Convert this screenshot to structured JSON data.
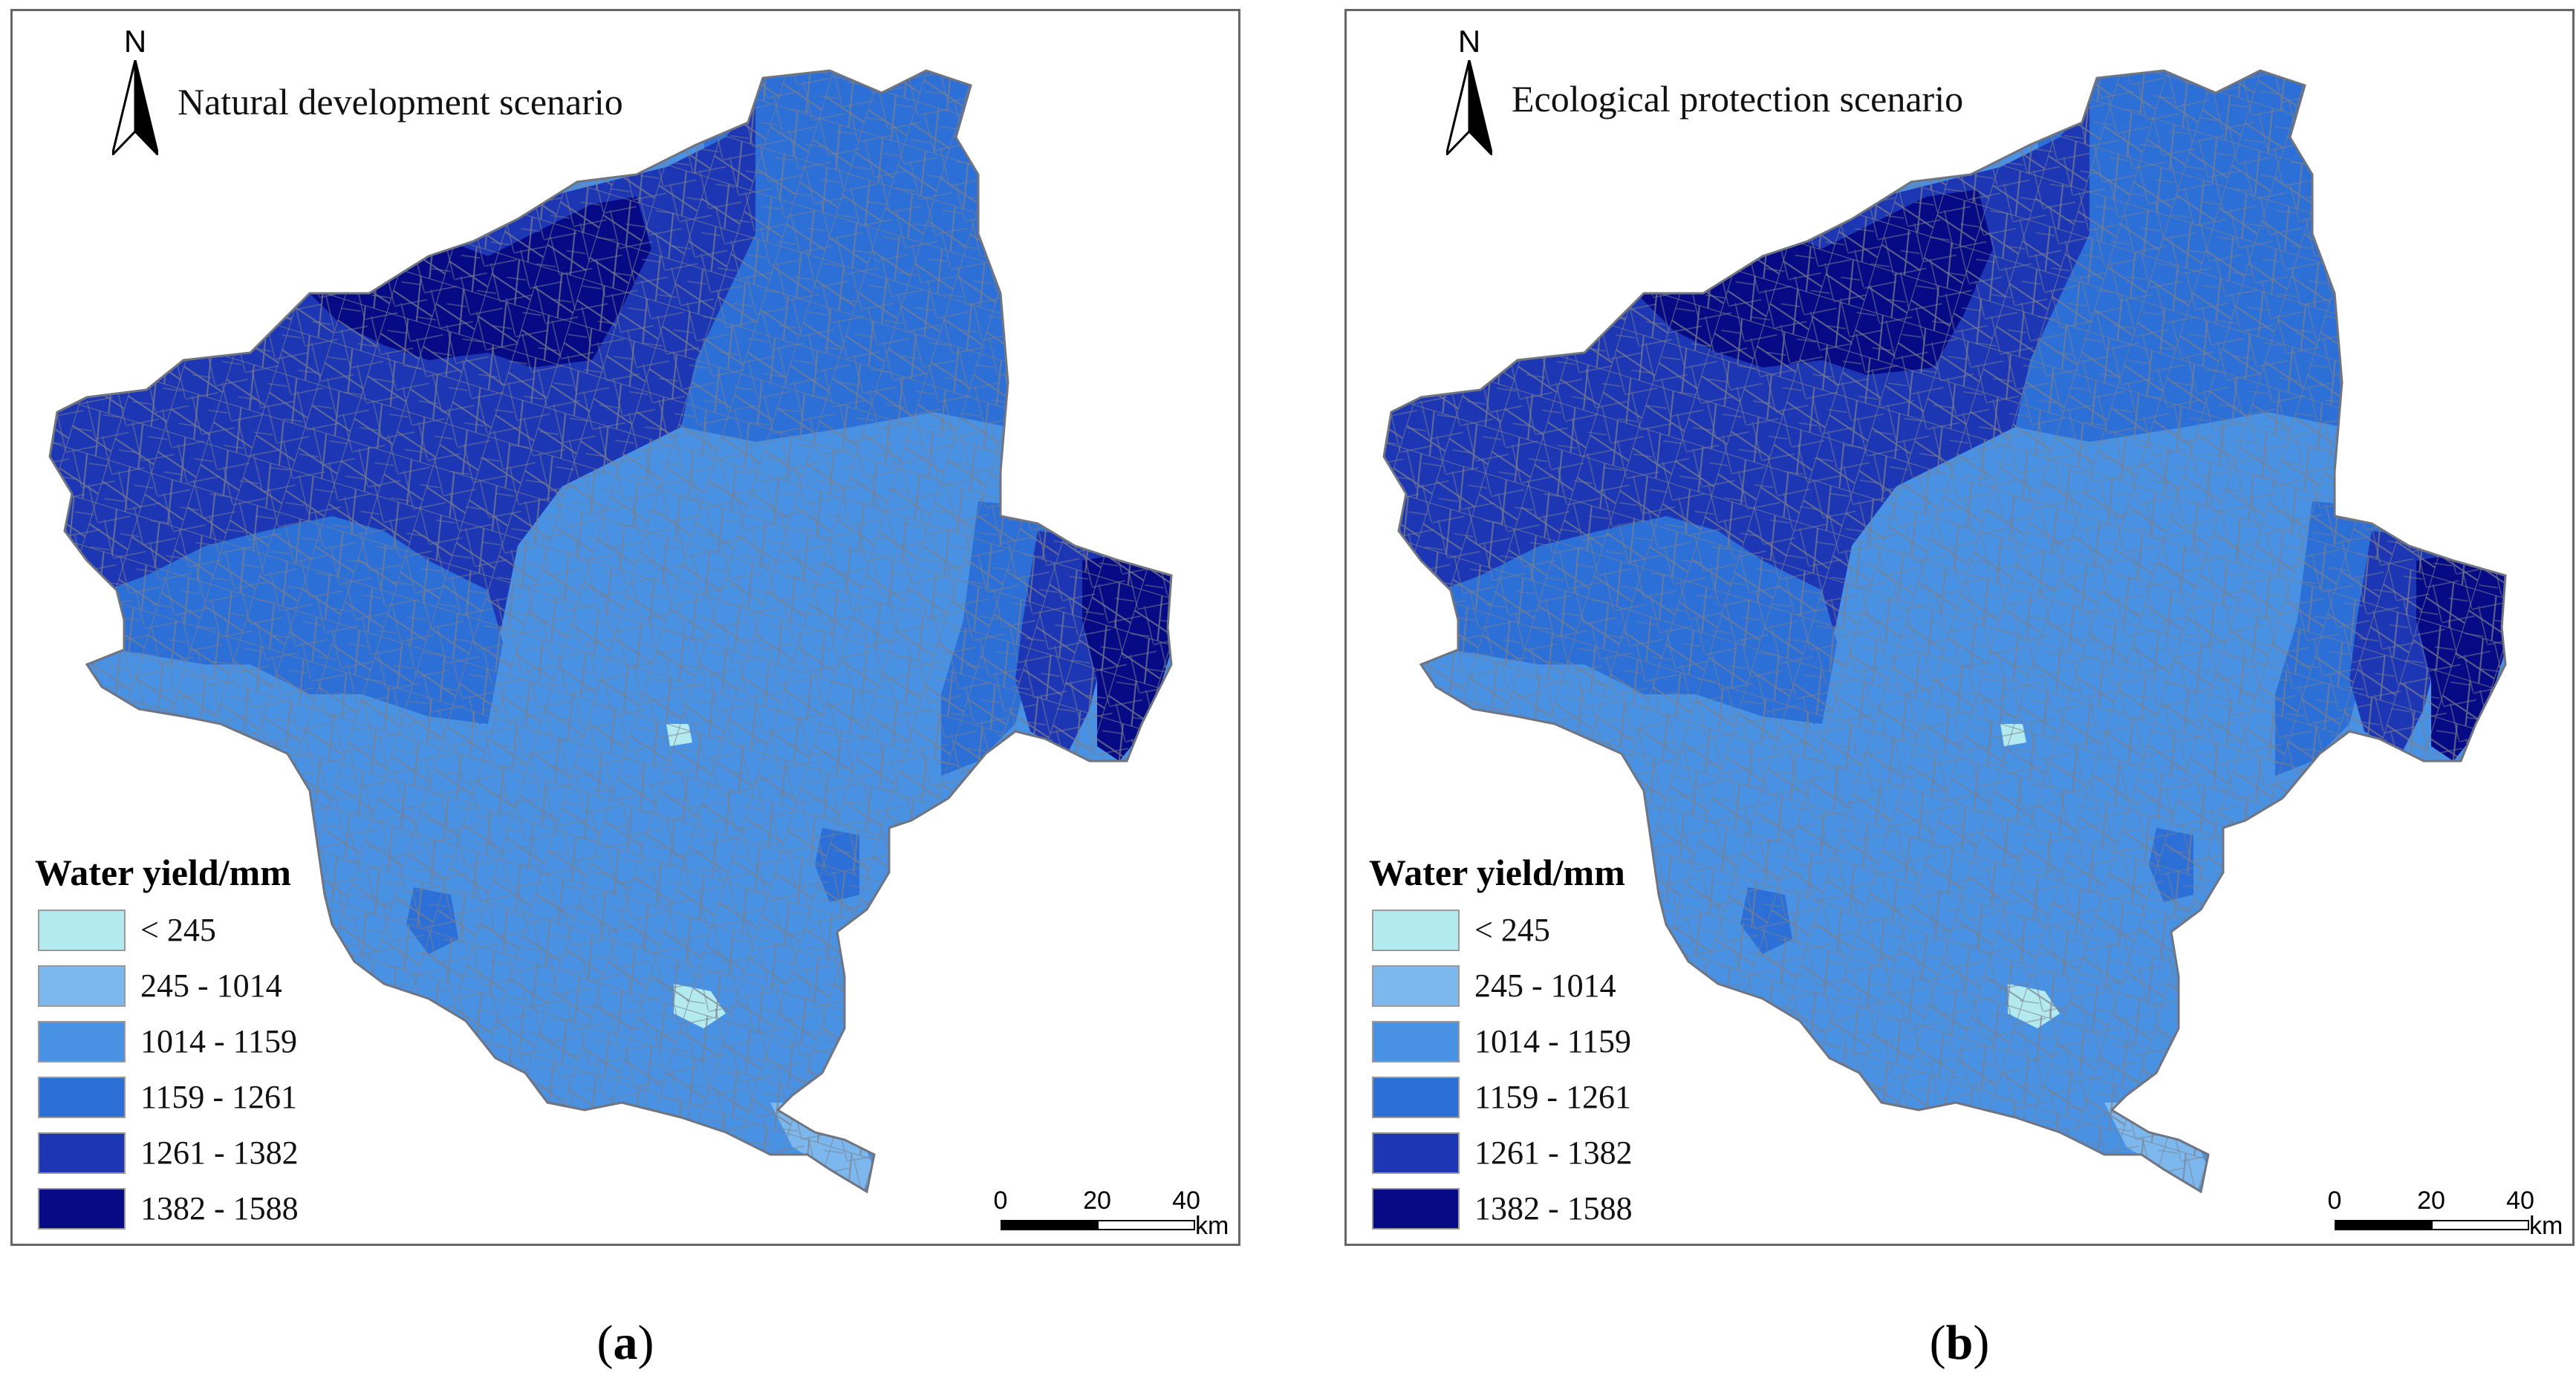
{
  "legend": {
    "title": "Water yield/mm",
    "classes": [
      {
        "label": "< 245",
        "color": "#b3eaf0"
      },
      {
        "label": "245 - 1014",
        "color": "#7cb8ee"
      },
      {
        "label": "1014 - 1159",
        "color": "#4891e3"
      },
      {
        "label": "1159 - 1261",
        "color": "#2c6fd6"
      },
      {
        "label": "1261 - 1382",
        "color": "#1d36b4"
      },
      {
        "label": "1382 - 1588",
        "color": "#060b85"
      }
    ]
  },
  "north_arrow": {
    "letter": "N"
  },
  "scale_bar": {
    "ticks": [
      "0",
      "20",
      "40"
    ],
    "unit": "km"
  },
  "panels": [
    {
      "id": "a",
      "title": "Natural development scenario",
      "caption_open": "(",
      "caption_letter": "a",
      "caption_close": ")"
    },
    {
      "id": "b",
      "title": "Ecological protection scenario",
      "caption_open": "(",
      "caption_letter": "b",
      "caption_close": ")"
    }
  ],
  "colors": {
    "boundary": "#7a7f8c",
    "frame": "#666666"
  }
}
